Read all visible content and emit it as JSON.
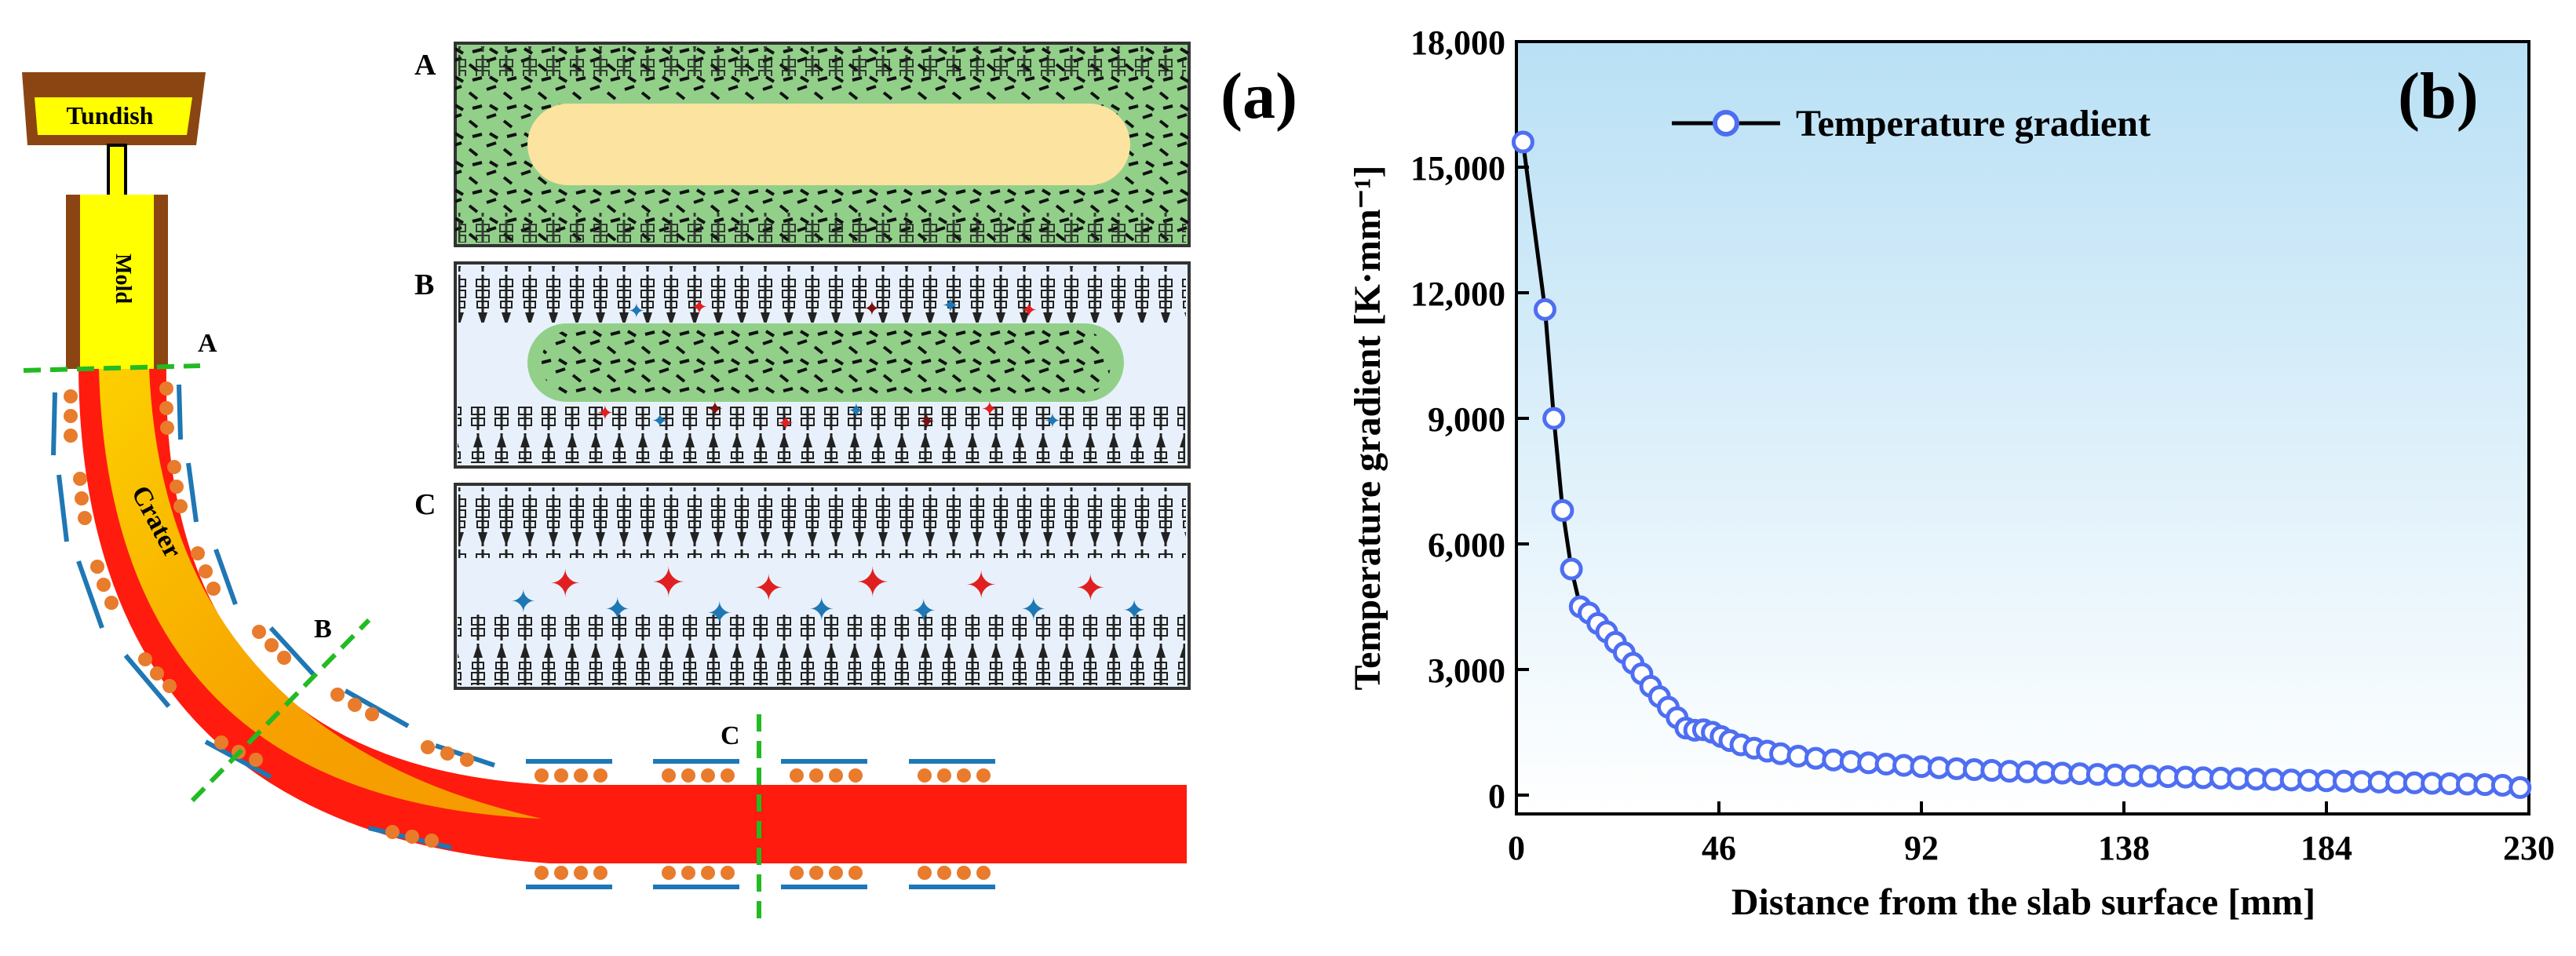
{
  "panel_a": {
    "label": "(a)",
    "machine": {
      "tundish_label": "Tundish",
      "mold_label": "Mold",
      "crater_label": "Crater",
      "section_labels": [
        "A",
        "B",
        "C"
      ]
    },
    "insets": [
      {
        "label": "A"
      },
      {
        "label": "B"
      },
      {
        "label": "C"
      }
    ]
  },
  "panel_b": {
    "label": "(b)"
  },
  "colors": {
    "green": "#92d08a",
    "cream": "#fde3a0",
    "steel_red": "#ff1b0e",
    "steel_orange": "#f7a100",
    "roller": "#e87b2c",
    "segment": "#1f77b4",
    "mold_yellow": "#ffff00",
    "mold_brown": "#8b4513",
    "cut_line": "#22bb22",
    "series": "#4e6ef2",
    "plot_grad_top": "#b9e0f5"
  },
  "chart_data": {
    "type": "line",
    "title": "",
    "xlabel": "Distance from the slab surface [mm]",
    "ylabel": "Temperature gradient [K·mm⁻¹]",
    "xlim": [
      0,
      230
    ],
    "ylim": [
      -450,
      18000
    ],
    "xticks": [
      0,
      46,
      92,
      138,
      184,
      230
    ],
    "xtick_labels": [
      "0",
      "46",
      "92",
      "138",
      "184",
      "230"
    ],
    "yticks": [
      0,
      3000,
      6000,
      9000,
      12000,
      15000,
      18000
    ],
    "ytick_labels": [
      "0",
      "3,000",
      "6,000",
      "9,000",
      "12,000",
      "15,000",
      "18,000"
    ],
    "legend": {
      "label": "Temperature gradient",
      "position": "top-center"
    },
    "series": [
      {
        "name": "Temperature gradient",
        "x": [
          1.5,
          6.5,
          8.5,
          10.5,
          12.5,
          14.5,
          16.5,
          18.5,
          20.5,
          22.5,
          24.5,
          26.5,
          28.5,
          30.5,
          32.5,
          34.5,
          36.5,
          38.5,
          40.5,
          42.5,
          44.5,
          46.5,
          48.5,
          51,
          54,
          57,
          60,
          64,
          68,
          72,
          76,
          80,
          84,
          88,
          92,
          96,
          100,
          104,
          108,
          112,
          116,
          120,
          124,
          128,
          132,
          136,
          140,
          144,
          148,
          152,
          156,
          160,
          164,
          168,
          172,
          176,
          180,
          184,
          188,
          192,
          196,
          200,
          204,
          208,
          212,
          216,
          220,
          224,
          228
        ],
        "values": [
          15600,
          11600,
          9000,
          6800,
          5400,
          4500,
          4350,
          4100,
          3900,
          3650,
          3400,
          3150,
          2900,
          2600,
          2350,
          2100,
          1850,
          1600,
          1550,
          1560,
          1500,
          1400,
          1300,
          1200,
          1120,
          1050,
          990,
          930,
          880,
          840,
          800,
          770,
          740,
          710,
          680,
          655,
          630,
          610,
          590,
          570,
          555,
          540,
          525,
          510,
          495,
          480,
          465,
          452,
          440,
          428,
          416,
          405,
          394,
          383,
          372,
          362,
          352,
          342,
          332,
          322,
          312,
          302,
          292,
          282,
          272,
          262,
          250,
          235,
          180
        ]
      }
    ]
  }
}
